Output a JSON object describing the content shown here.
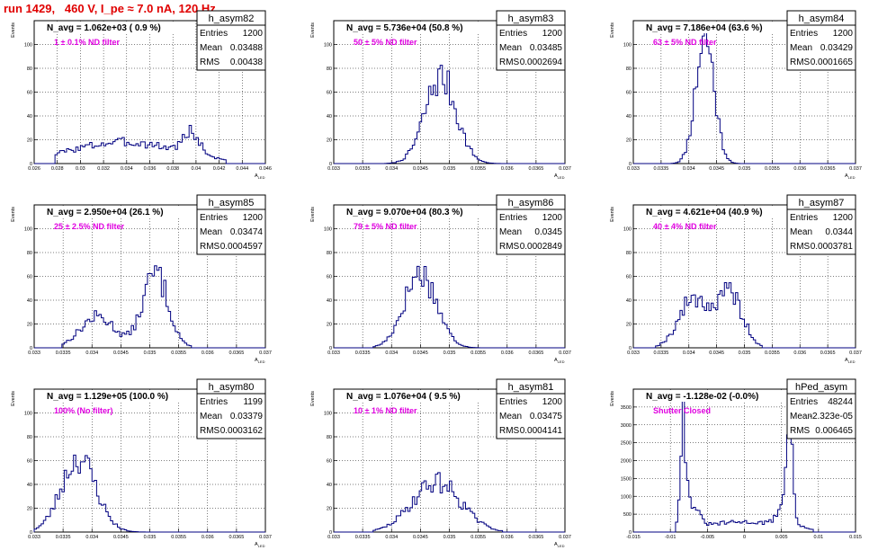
{
  "header": {
    "run_title": "run 1429,   460 V, I_pe ≈ 7.0 nA, 120 Hz"
  },
  "chart_data": [
    {
      "type": "histogram",
      "name": "h_asym82",
      "navg": "N_avg = 1.062e+03 ( 0.9 %)",
      "note": "1 ± 0.1% ND filter",
      "stats": {
        "Entries": "1200",
        "Mean": "0.03488",
        "RMS": "0.00438"
      },
      "xlim": [
        0.026,
        0.046
      ],
      "ylim": [
        0,
        120
      ],
      "xticks": [
        "0.026",
        "0.028",
        "0.03",
        "0.032",
        "0.034",
        "0.036",
        "0.038",
        "0.04",
        "0.042",
        "0.044",
        "0.046"
      ],
      "yticks": [
        "0",
        "20",
        "40",
        "60",
        "80",
        "100"
      ],
      "xlabel": "A_LED",
      "ylabel": "Events",
      "peaks": [
        {
          "mu": 0.0338,
          "sigma": 0.0048,
          "amp": 18
        },
        {
          "mu": 0.0396,
          "sigma": 0.0007,
          "amp": 18
        }
      ],
      "range": [
        0.0278,
        0.0425
      ],
      "seed": 3
    },
    {
      "type": "histogram",
      "name": "h_asym83",
      "navg": "N_avg = 5.736e+04 (50.8 %)",
      "note": "50 ± 5% ND filter",
      "stats": {
        "Entries": "1200",
        "Mean": "0.03485",
        "RMS": "0.0002694"
      },
      "xlim": [
        0.033,
        0.037
      ],
      "ylim": [
        0,
        120
      ],
      "xticks": [
        "0.033",
        "0.0335",
        "0.034",
        "0.0345",
        "0.035",
        "0.0355",
        "0.036",
        "0.0365",
        "0.037"
      ],
      "yticks": [
        "0",
        "20",
        "40",
        "60",
        "80",
        "100"
      ],
      "xlabel": "A_LED",
      "ylabel": "Events",
      "peaks": [
        {
          "mu": 0.03485,
          "sigma": 0.00027,
          "amp": 72
        }
      ],
      "range": [
        0.0339,
        0.0359
      ],
      "seed": 7
    },
    {
      "type": "histogram",
      "name": "h_asym84",
      "navg": "N_avg = 7.186e+04 (63.6 %)",
      "note": "63 ± 5% ND filter",
      "stats": {
        "Entries": "1200",
        "Mean": "0.03429",
        "RMS": "0.0001665"
      },
      "xlim": [
        0.033,
        0.037
      ],
      "ylim": [
        0,
        120
      ],
      "xticks": [
        "0.033",
        "0.0335",
        "0.034",
        "0.0345",
        "0.035",
        "0.0355",
        "0.036",
        "0.0365",
        "0.037"
      ],
      "yticks": [
        "0",
        "20",
        "40",
        "60",
        "80",
        "100"
      ],
      "xlabel": "A_LED",
      "ylabel": "Events",
      "peaks": [
        {
          "mu": 0.03429,
          "sigma": 0.000165,
          "amp": 108
        }
      ],
      "range": [
        0.0337,
        0.0349
      ],
      "seed": 11
    },
    {
      "type": "histogram",
      "name": "h_asym85",
      "navg": "N_avg = 2.950e+04 (26.1 %)",
      "note": "25 ± 2.5% ND filter",
      "stats": {
        "Entries": "1200",
        "Mean": "0.03474",
        "RMS": "0.0004597"
      },
      "xlim": [
        0.033,
        0.037
      ],
      "ylim": [
        0,
        120
      ],
      "xticks": [
        "0.033",
        "0.0335",
        "0.034",
        "0.0345",
        "0.035",
        "0.0355",
        "0.036",
        "0.0365",
        "0.037"
      ],
      "yticks": [
        "0",
        "20",
        "40",
        "60",
        "80",
        "100"
      ],
      "xlabel": "A_LED",
      "ylabel": "Events",
      "peaks": [
        {
          "mu": 0.0341,
          "sigma": 0.0003,
          "amp": 26
        },
        {
          "mu": 0.0351,
          "sigma": 0.00022,
          "amp": 62
        }
      ],
      "range": [
        0.0335,
        0.0357
      ],
      "seed": 13
    },
    {
      "type": "histogram",
      "name": "h_asym86",
      "navg": "N_avg = 9.070e+04 (80.3 %)",
      "note": "79 ± 5% ND filter",
      "stats": {
        "Entries": "1200",
        "Mean": "0.0345",
        "RMS": "0.0002849"
      },
      "xlim": [
        0.033,
        0.037
      ],
      "ylim": [
        0,
        120
      ],
      "xticks": [
        "0.033",
        "0.0335",
        "0.034",
        "0.0345",
        "0.035",
        "0.0355",
        "0.036",
        "0.0365",
        "0.037"
      ],
      "yticks": [
        "0",
        "20",
        "40",
        "60",
        "80",
        "100"
      ],
      "xlabel": "A_LED",
      "ylabel": "Events",
      "peaks": [
        {
          "mu": 0.0345,
          "sigma": 0.00028,
          "amp": 63
        }
      ],
      "range": [
        0.0337,
        0.0355
      ],
      "seed": 17
    },
    {
      "type": "histogram",
      "name": "h_asym87",
      "navg": "N_avg = 4.621e+04 (40.9 %)",
      "note": "40 ± 4% ND filter",
      "stats": {
        "Entries": "1200",
        "Mean": "0.0344",
        "RMS": "0.0003781"
      },
      "xlim": [
        0.033,
        0.037
      ],
      "ylim": [
        0,
        120
      ],
      "xticks": [
        "0.033",
        "0.0335",
        "0.034",
        "0.0345",
        "0.035",
        "0.0355",
        "0.036",
        "0.0365",
        "0.037"
      ],
      "yticks": [
        "0",
        "20",
        "40",
        "60",
        "80",
        "100"
      ],
      "xlabel": "A_LED",
      "ylabel": "Events",
      "peaks": [
        {
          "mu": 0.0341,
          "sigma": 0.00027,
          "amp": 42
        },
        {
          "mu": 0.03475,
          "sigma": 0.00022,
          "amp": 44
        }
      ],
      "range": [
        0.0334,
        0.0353
      ],
      "seed": 19
    },
    {
      "type": "histogram",
      "name": "h_asym80",
      "navg": "N_avg = 1.129e+05 (100.0 %)",
      "note": "100% (No filter)",
      "stats": {
        "Entries": "1199",
        "Mean": "0.03379",
        "RMS": "0.0003162"
      },
      "xlim": [
        0.033,
        0.037
      ],
      "ylim": [
        0,
        120
      ],
      "xticks": [
        "0.033",
        "0.0335",
        "0.034",
        "0.0345",
        "0.035",
        "0.0355",
        "0.036",
        "0.0365",
        "0.037"
      ],
      "yticks": [
        "0",
        "20",
        "40",
        "60",
        "80",
        "100"
      ],
      "xlabel": "A_LED",
      "ylabel": "Events",
      "peaks": [
        {
          "mu": 0.03377,
          "sigma": 0.0003,
          "amp": 62
        }
      ],
      "range": [
        0.033,
        0.0349
      ],
      "seed": 23
    },
    {
      "type": "histogram",
      "name": "h_asym81",
      "navg": "N_avg = 1.076e+04 ( 9.5 %)",
      "note": "10 ± 1% ND filter",
      "stats": {
        "Entries": "1200",
        "Mean": "0.03475",
        "RMS": "0.0004141"
      },
      "xlim": [
        0.033,
        0.037
      ],
      "ylim": [
        0,
        120
      ],
      "xticks": [
        "0.033",
        "0.0335",
        "0.034",
        "0.0345",
        "0.035",
        "0.0355",
        "0.036",
        "0.0365",
        "0.037"
      ],
      "yticks": [
        "0",
        "20",
        "40",
        "60",
        "80",
        "100"
      ],
      "xlabel": "A_LED",
      "ylabel": "Events",
      "peaks": [
        {
          "mu": 0.03478,
          "sigma": 0.00042,
          "amp": 42
        }
      ],
      "range": [
        0.0337,
        0.0359
      ],
      "seed": 29
    },
    {
      "type": "histogram",
      "name": "hPed_asym",
      "navg": "N_avg = -1.128e-02 (-0.0%)",
      "note": "Shutter Closed",
      "stats": {
        "Entries": "48244",
        "Mean": "-2.323e-05",
        "RMS": "0.006465"
      },
      "xlim": [
        -0.015,
        0.015
      ],
      "ylim": [
        0,
        4000
      ],
      "xticks": [
        "-0.015",
        "-0.01",
        "-0.005",
        "0",
        "0.005",
        "0.01",
        "0.015"
      ],
      "yticks": [
        "0",
        "500",
        "1000",
        "1500",
        "2000",
        "2500",
        "3000",
        "3500"
      ],
      "xlabel": "",
      "ylabel": "Events",
      "peaks": [
        {
          "mu": -0.0083,
          "sigma": 0.00035,
          "amp": 3000
        },
        {
          "mu": 0.0061,
          "sigma": 0.00035,
          "amp": 3200
        },
        {
          "mu": -0.0072,
          "sigma": 0.0009,
          "amp": 700
        },
        {
          "mu": 0.0055,
          "sigma": 0.0009,
          "amp": 700
        },
        {
          "mu": 0.0,
          "sigma": 0.006,
          "amp": 280
        }
      ],
      "range": [
        -0.0092,
        0.0092
      ],
      "seed": 31
    }
  ]
}
